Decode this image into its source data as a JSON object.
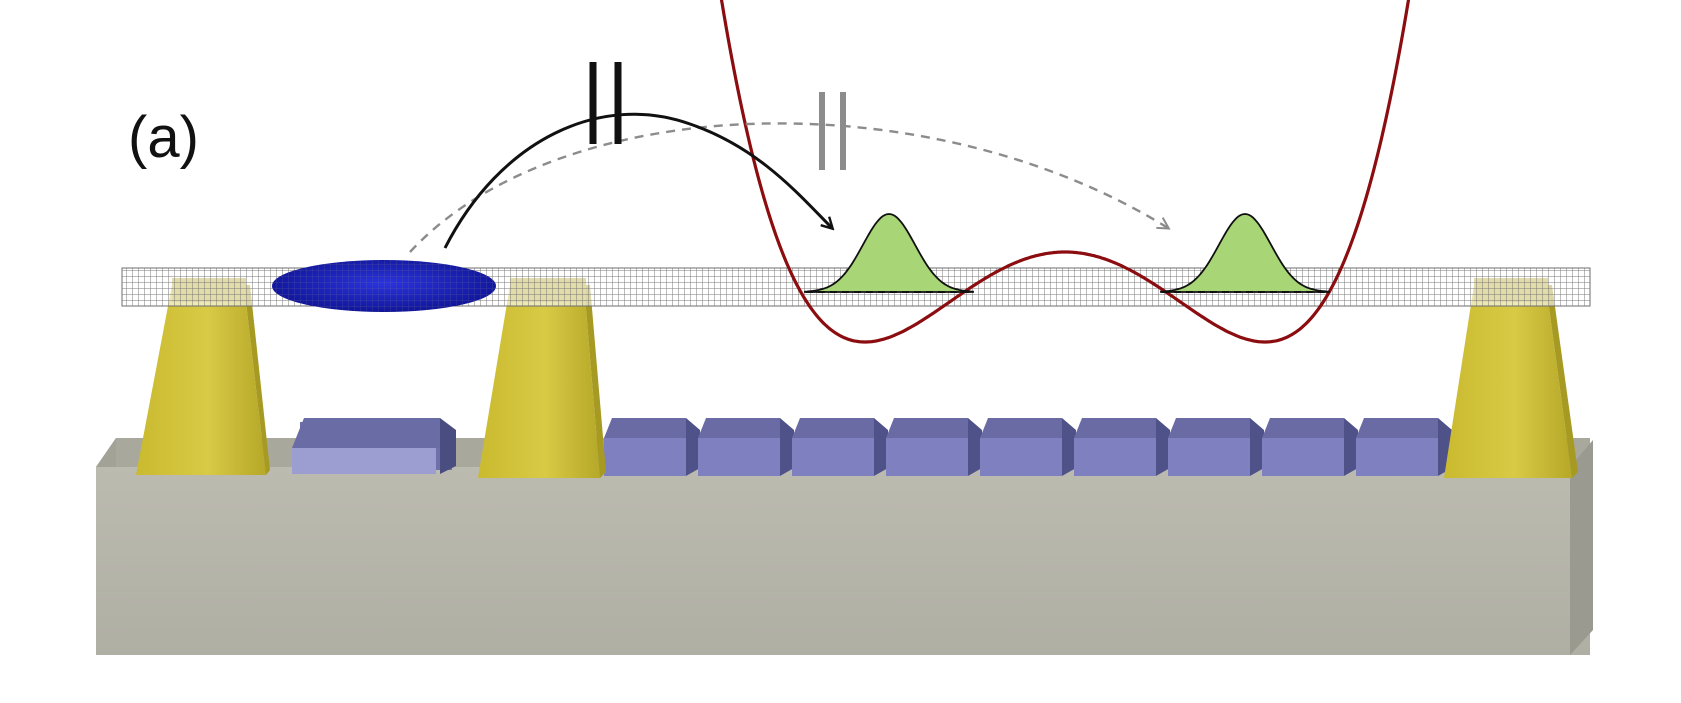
{
  "figure": {
    "panel_label": "(a)"
  },
  "colors": {
    "background": "#ffffff",
    "substrate": "#b5b4a8",
    "substrate_top": "#9d9c92",
    "substrate_side": "#8f8e85",
    "clamp_yellow": "#d2c33a",
    "clamp_yellow_dark": "#a89a22",
    "electrode_front": "#7f80c0",
    "electrode_top": "#6a6ba5",
    "electrode_side": "#4f5288",
    "beam_grid": "#8a8a8a",
    "atom_cloud": "#1c22c8",
    "potential_curve": "#8b0d10",
    "wavepacket_fill": "#a8d676",
    "transfer_arrow": "#111111",
    "blocked_arrow": "#8c8c8c"
  },
  "elements": {
    "electrode_count": 9,
    "clamp_count": 3,
    "wavepacket_count": 2
  }
}
